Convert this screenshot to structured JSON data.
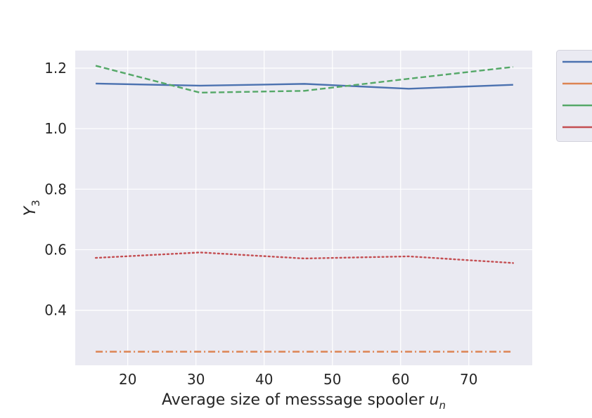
{
  "chart_data": {
    "type": "line",
    "title": "",
    "xlabel": "Average size of messsage spooler",
    "xlabel_symbol": "u",
    "xlabel_subscript": "n",
    "ylabel_symbol": "Y",
    "ylabel_subscript": "3",
    "xlim": [
      12.3,
      79.3
    ],
    "ylim": [
      0.218,
      1.258
    ],
    "xticks": [
      20,
      30,
      40,
      50,
      60,
      70
    ],
    "yticks": [
      0.4,
      0.6,
      0.8,
      1.0,
      1.2
    ],
    "ytick_labels": [
      "0.4",
      "0.6",
      "0.8",
      "1.0",
      "1.2"
    ],
    "grid": true,
    "legend_placement": "outside-right, partially cut off",
    "x": [
      15.3,
      30.6,
      45.9,
      61.2,
      76.5
    ],
    "series": [
      {
        "values": [
          1.149,
          1.142,
          1.148,
          1.132,
          1.145
        ],
        "color": "#4c72b0",
        "dash": "solid"
      },
      {
        "values": [
          0.263,
          0.263,
          0.263,
          0.263,
          0.263
        ],
        "color": "#dd8452",
        "dash": "dashdot"
      },
      {
        "values": [
          1.208,
          1.119,
          1.125,
          1.165,
          1.204
        ],
        "color": "#55a868",
        "dash": "dashed"
      },
      {
        "values": [
          0.573,
          0.591,
          0.571,
          0.578,
          0.556
        ],
        "color": "#c44e52",
        "dash": "dotted"
      }
    ]
  }
}
